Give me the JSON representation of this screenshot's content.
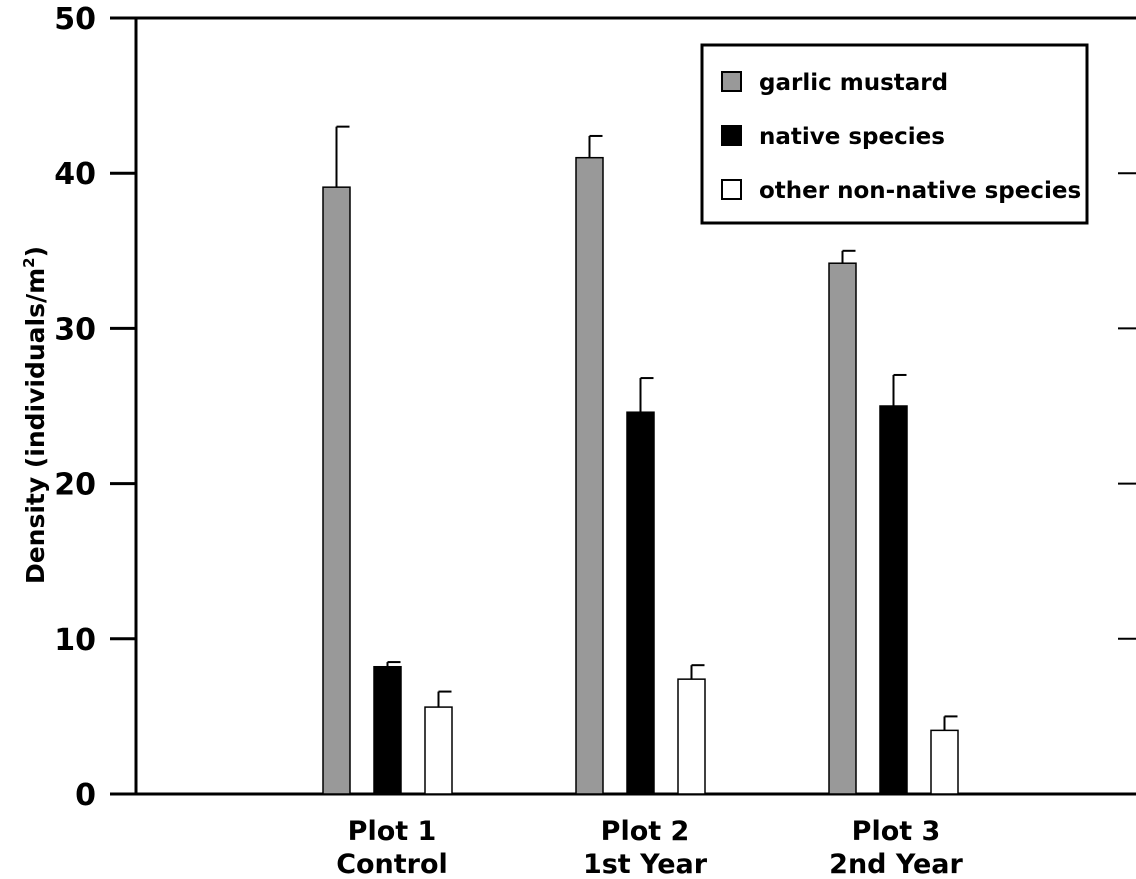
{
  "chart_data": {
    "type": "bar",
    "ylabel": "Density (individuals/m",
    "ylabel_sup": "2",
    "ylabel_close": ")",
    "ylim": [
      0,
      50
    ],
    "yticks": [
      0,
      10,
      20,
      30,
      40,
      50
    ],
    "categories": [
      [
        "Plot 1",
        "Control"
      ],
      [
        "Plot 2",
        "1st Year"
      ],
      [
        "Plot 3",
        "2nd Year"
      ]
    ],
    "series": [
      {
        "name": "garlic mustard",
        "color": "#999999",
        "values": [
          39.1,
          41.0,
          34.2
        ],
        "errors": [
          3.9,
          1.4,
          0.8
        ]
      },
      {
        "name": "native species",
        "color": "#000000",
        "values": [
          8.2,
          24.6,
          25.0
        ],
        "errors": [
          0.3,
          2.2,
          2.0
        ]
      },
      {
        "name": "other non-native species",
        "color": "#ffffff",
        "values": [
          5.6,
          7.4,
          4.1
        ],
        "errors": [
          1.0,
          0.9,
          0.9
        ]
      }
    ],
    "legend_position": "top-right",
    "grid": false
  }
}
